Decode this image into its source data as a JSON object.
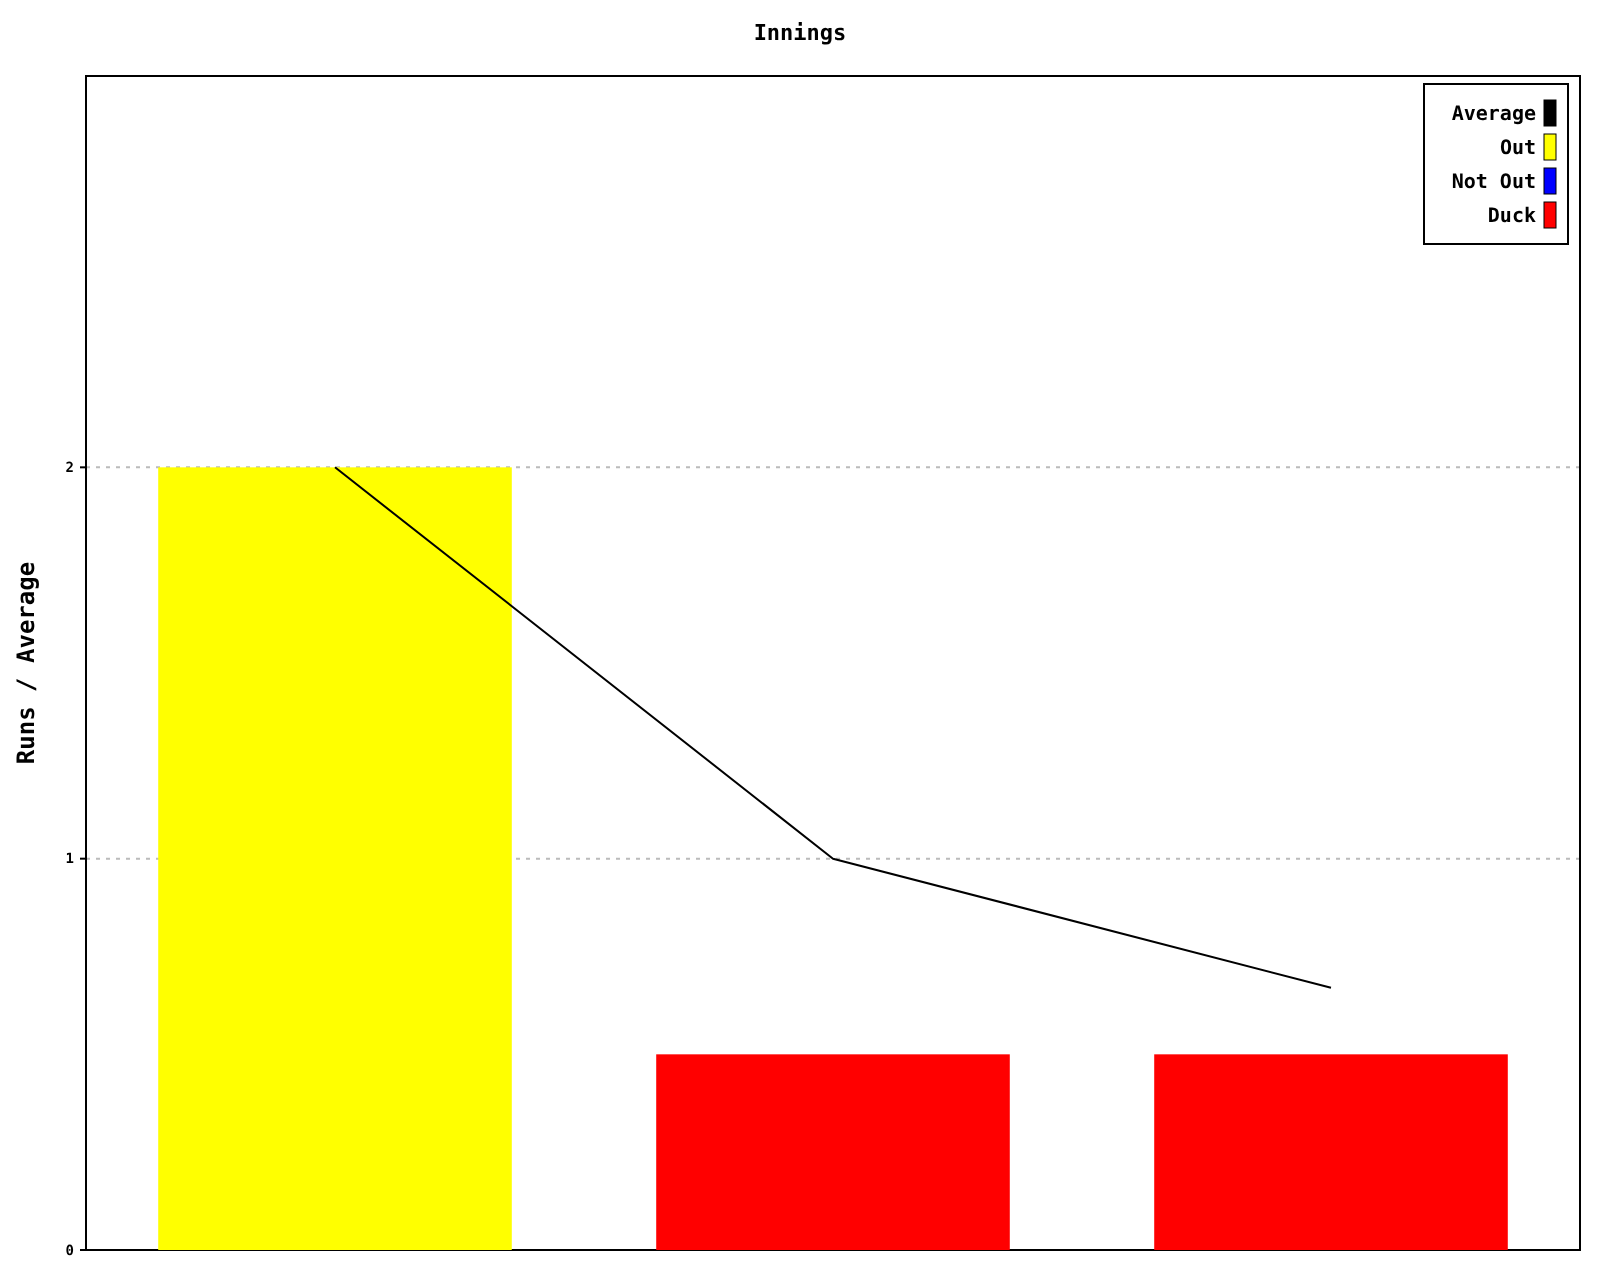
{
  "chart_data": {
    "type": "bar",
    "title": "Innings",
    "ylabel": "Runs / Average",
    "categories": [
      null,
      null,
      null
    ],
    "ylim": [
      0,
      3
    ],
    "yticks": [
      0,
      1,
      2
    ],
    "grid": "y",
    "legend": "top right",
    "series": [
      {
        "name": "Average",
        "type": "line",
        "color": "#000000",
        "values": [
          2,
          1,
          0.67
        ]
      },
      {
        "name": "Out",
        "color": "#ffff00",
        "values": [
          2,
          null,
          null
        ]
      },
      {
        "name": "Not Out",
        "color": "#0000ff",
        "values": [
          null,
          null,
          null
        ]
      },
      {
        "name": "Duck",
        "color": "#ff0000",
        "values": [
          null,
          0.5,
          0.5
        ]
      }
    ]
  }
}
